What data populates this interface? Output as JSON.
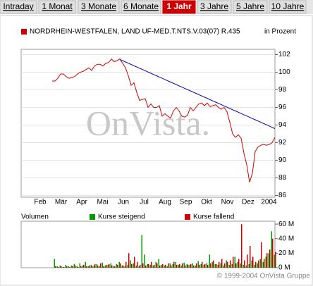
{
  "tabs": [
    {
      "label": "Intraday"
    },
    {
      "label": "1 Monat"
    },
    {
      "label": "3 Monate"
    },
    {
      "label": "6 Monate"
    },
    {
      "label": "1 Jahr",
      "active": true
    },
    {
      "label": "3 Jahre"
    },
    {
      "label": "5 Jahre"
    },
    {
      "label": "10 Jahre"
    }
  ],
  "chart_data": [
    {
      "type": "line",
      "unit_label": "in Prozent",
      "watermark": "OnVista.",
      "x_labels": [
        "Feb",
        "Mär",
        "Apr",
        "Mai",
        "Jun",
        "Jul",
        "Aug",
        "Sep",
        "Okt",
        "Nov",
        "Dez",
        "2004"
      ],
      "series": [
        {
          "name": "NORDRHEIN-WESTFALEN, LAND UF-MED.T.NTS.V.03(07) R.435",
          "color": "#cc0000",
          "values": [
            null,
            null,
            null,
            null,
            null,
            null,
            null,
            null,
            null,
            null,
            null,
            99.0,
            99.0,
            99.3,
            99.8,
            99.8,
            99.5,
            99.3,
            99.4,
            99.5,
            99.8,
            100.0,
            100.1,
            100.3,
            100.5,
            100.2,
            100.7,
            100.9,
            100.9,
            100.7,
            101.0,
            101.1,
            101.5,
            101.2,
            101.3,
            101.5,
            101.0,
            100.5,
            99.6,
            98.5,
            98.8,
            97.7,
            96.8,
            96.9,
            97.0,
            96.0,
            96.4,
            96.0,
            96.0,
            96.2,
            95.0,
            95.3,
            95.0,
            94.8,
            95.6,
            96.0,
            95.6,
            95.0,
            94.9,
            95.1,
            96.0,
            95.6,
            96.0,
            96.4,
            96.5,
            96.2,
            96.5,
            96.1,
            96.2,
            96.3,
            96.0,
            95.8,
            96.0,
            95.5,
            94.3,
            93.0,
            92.6,
            92.9,
            92.5,
            90.8,
            89.5,
            87.5,
            88.5,
            91.0,
            91.5,
            91.7,
            91.8,
            91.7,
            91.8,
            92.0,
            92.6
          ]
        },
        {
          "color": "#0000aa",
          "values": [
            null,
            null,
            null,
            null,
            null,
            null,
            null,
            null,
            null,
            null,
            null,
            null,
            null,
            null,
            null,
            null,
            null,
            null,
            null,
            null,
            null,
            null,
            null,
            null,
            null,
            null,
            null,
            null,
            null,
            null,
            null,
            null,
            null,
            null,
            null,
            101.45,
            101.31,
            101.16,
            101.02,
            100.88,
            100.74,
            100.59,
            100.45,
            100.31,
            100.17,
            100.02,
            99.88,
            99.74,
            99.6,
            99.45,
            99.31,
            99.17,
            99.02,
            98.88,
            98.74,
            98.6,
            98.45,
            98.31,
            98.17,
            98.03,
            97.88,
            97.74,
            97.6,
            97.45,
            97.31,
            97.17,
            97.03,
            96.88,
            96.74,
            96.6,
            96.46,
            96.31,
            96.17,
            96.03,
            95.88,
            95.74,
            95.6,
            95.46,
            95.31,
            95.17,
            95.03,
            94.89,
            94.74,
            94.6,
            94.46,
            94.31,
            94.17,
            94.03,
            93.89,
            93.74,
            93.6
          ]
        }
      ],
      "ylim": [
        85.8,
        102.6
      ],
      "yticks": [
        86,
        88,
        90,
        92,
        94,
        96,
        98,
        100,
        102
      ],
      "grid": true
    },
    {
      "type": "bar",
      "title": "Volumen",
      "series": [
        {
          "name": "Kurse steigend",
          "color": "#009900",
          "values": [
            null,
            null,
            null,
            null,
            null,
            null,
            null,
            null,
            null,
            null,
            null,
            0,
            12,
            2,
            3,
            1,
            4,
            2,
            3,
            5,
            2,
            6,
            3,
            8,
            2,
            4,
            3,
            5,
            2,
            7,
            3,
            4,
            6,
            2,
            5,
            8,
            3,
            2,
            4,
            10,
            6,
            3,
            2,
            45,
            18,
            5,
            4,
            3,
            8,
            12,
            4,
            3,
            2,
            6,
            5,
            8,
            4,
            3,
            7,
            5,
            4,
            6,
            3,
            9,
            5,
            4,
            6,
            18,
            8,
            5,
            4,
            6,
            3,
            10,
            4,
            5,
            15,
            8,
            6,
            4,
            3,
            5,
            10,
            4,
            6,
            12,
            8,
            15,
            20,
            50,
            18
          ]
        },
        {
          "name": "Kurse fallend",
          "color": "#cc0000",
          "values": [
            null,
            null,
            null,
            null,
            null,
            null,
            null,
            null,
            null,
            null,
            null,
            0,
            2,
            1,
            2,
            1,
            2,
            1,
            2,
            3,
            1,
            2,
            4,
            2,
            3,
            2,
            5,
            3,
            6,
            2,
            4,
            5,
            3,
            2,
            4,
            6,
            3,
            8,
            20,
            5,
            15,
            8,
            4,
            6,
            3,
            5,
            8,
            4,
            6,
            3,
            5,
            4,
            6,
            3,
            8,
            4,
            5,
            6,
            3,
            4,
            5,
            3,
            6,
            4,
            8,
            5,
            4,
            6,
            10,
            5,
            8,
            12,
            6,
            8,
            10,
            15,
            6,
            12,
            60,
            10,
            18,
            30,
            15,
            8,
            10,
            35,
            12,
            20,
            25,
            40,
            22
          ]
        }
      ],
      "ylim": [
        0,
        64
      ],
      "yticks": [
        {
          "value": 0,
          "label": "0 M"
        },
        {
          "value": 20,
          "label": "20 M"
        },
        {
          "value": 40,
          "label": "40 M"
        },
        {
          "value": 60,
          "label": "60 M"
        }
      ]
    }
  ],
  "footer": "© 1999-2004 OnVista Gruppe"
}
